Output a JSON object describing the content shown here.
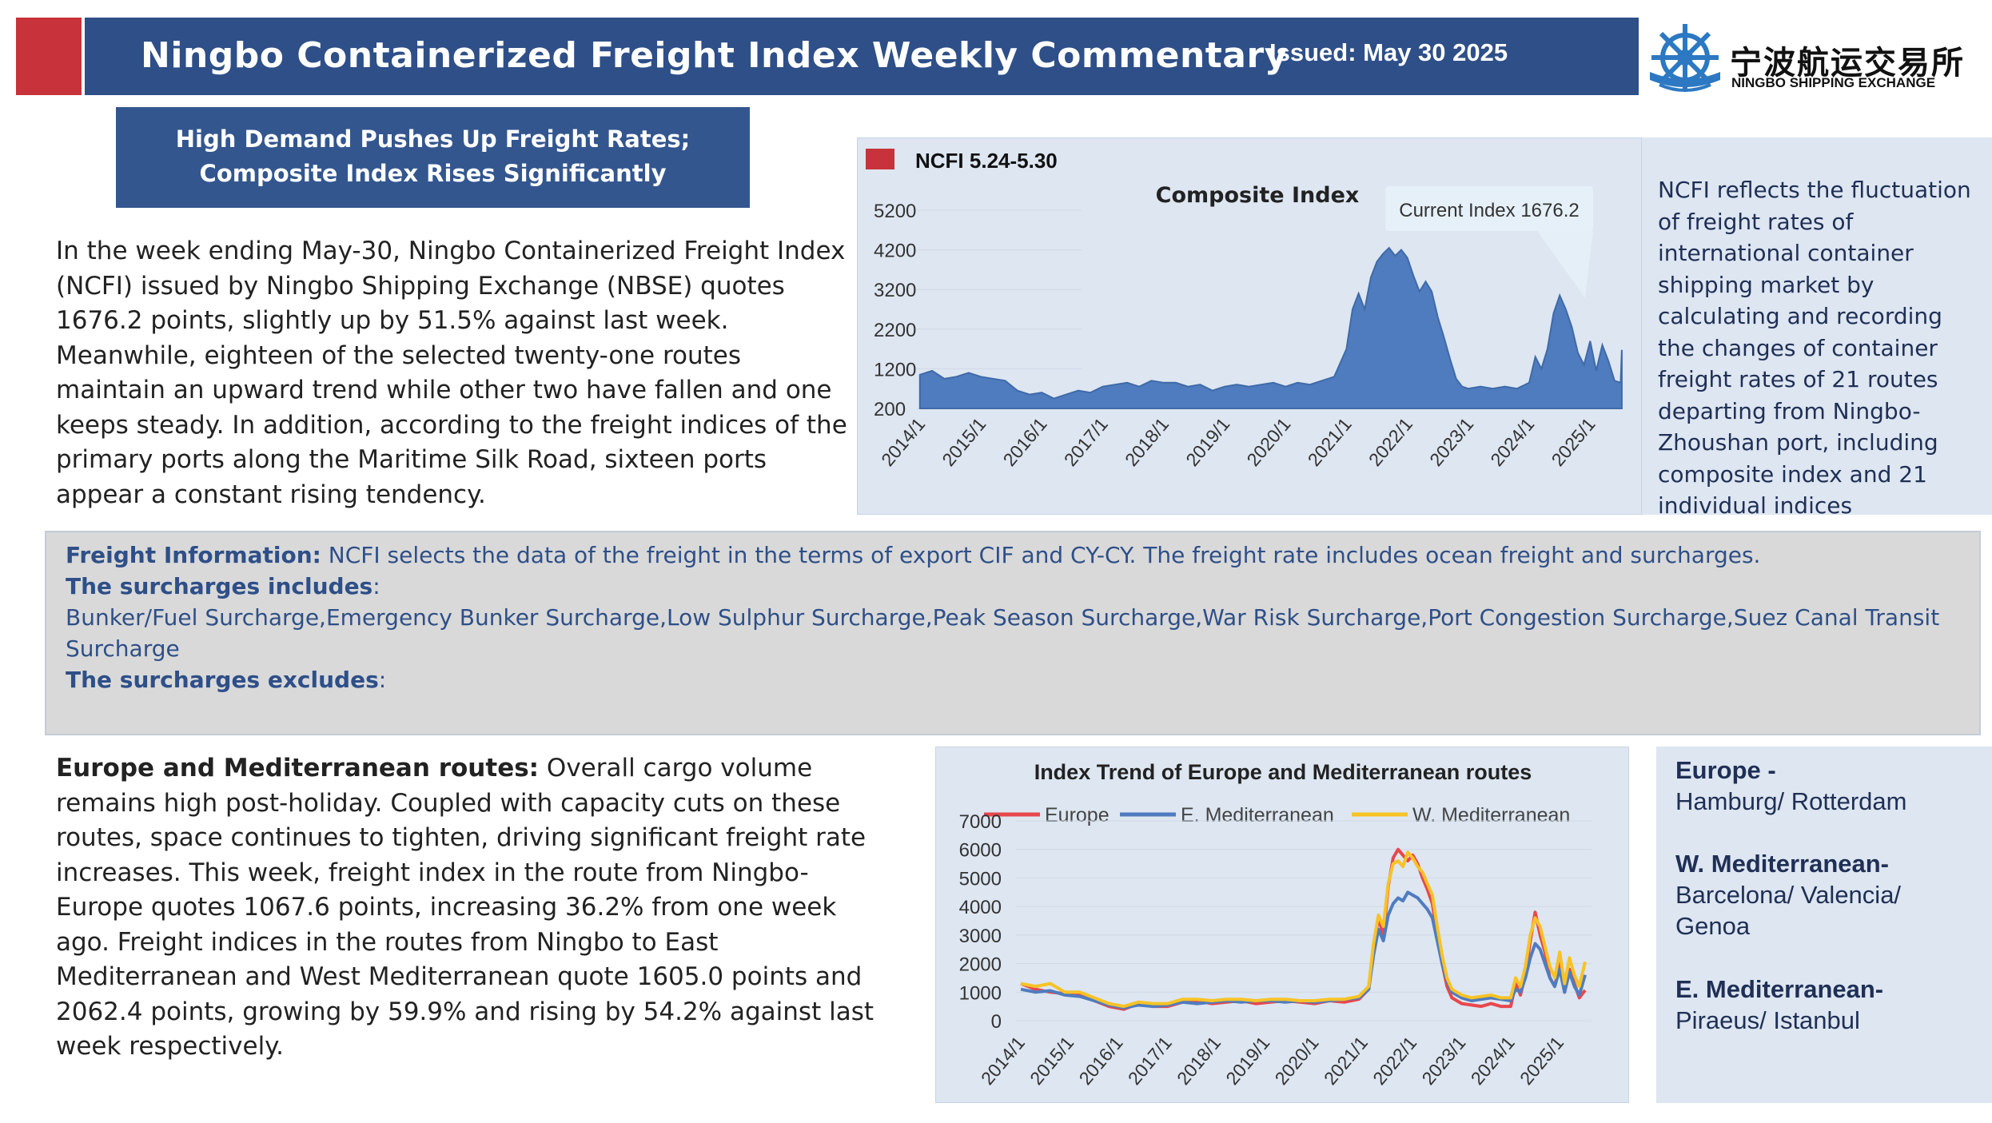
{
  "header": {
    "title": "Ningbo Containerized Freight Index Weekly Commentary",
    "issued": "Issued: May 30 2025",
    "logo_cn": "宁波航运交易所",
    "logo_en": "NINGBO SHIPPING EXCHANGE",
    "accent_color": "#c8323a",
    "bar_color": "#2e4f88"
  },
  "headline": {
    "line1": "High Demand Pushes Up Freight Rates;",
    "line2": "Composite Index Rises Significantly"
  },
  "intro": "In the week ending May-30, Ningbo Containerized Freight Index (NCFI) issued by Ningbo Shipping Exchange (NBSE) quotes 1676.2 points, slightly up by 51.5% against last week. Meanwhile, eighteen of the selected twenty-one routes maintain an upward trend while other two have fallen and one keeps steady. In addition, according to the freight indices of the primary ports along the Maritime Silk Road, sixteen ports appear a constant rising tendency.",
  "composite_note": "NCFI reflects the fluctuation of freight rates of international container shipping market by calculating and recording the changes of container freight rates of 21 routes departing from Ningbo-Zhoushan port, including composite index and 21 individual indices",
  "freight_info": {
    "label": "Freight Information:",
    "text": " NCFI selects the data of the freight in the terms of export CIF and CY-CY. The freight rate includes ocean freight and surcharges.",
    "includes_label": "The surcharges includes",
    "colon": ":",
    "includes_line1": "Bunker/Fuel Surcharge,Emergency Bunker Surcharge,Low Sulphur Surcharge,Peak Season Surcharge,War Risk Surcharge,Port Congestion Surcharge,Suez Canal Transit",
    "includes_line2": "Surcharge",
    "excludes_label": "The surcharges excludes",
    "excludes_colon": ":"
  },
  "europe": {
    "label": "Europe and Mediterranean routes:",
    "text": "  Overall cargo volume remains high post-holiday. Coupled with capacity cuts on these routes, space continues to tighten, driving significant freight rate increases. This week, freight index in the route from Ningbo-Europe quotes 1067.6 points, increasing 36.2% from one week ago. Freight indices in the routes from Ningbo to East Mediterranean and West Mediterranean quote 1605.0 points and 2062.4 points, growing by 59.9% and rising by 54.2% against last week respectively."
  },
  "ports": {
    "europe_head": "Europe -",
    "europe_ports": "Hamburg/ Rotterdam",
    "wmed_head": "W. Mediterranean-",
    "wmed_ports1": "Barcelona/ Valencia/",
    "wmed_ports2": "Genoa",
    "emed_head": "E. Mediterranean-",
    "emed_ports": "Piraeus/ Istanbul"
  },
  "chart_data": [
    {
      "type": "area",
      "title": "Composite Index",
      "legend": "NCFI 5.24-5.30",
      "annotation": "Current Index 1676.2",
      "color": "#4f7cbf",
      "legend_color": "#c8323a",
      "ylim": [
        200,
        5200
      ],
      "yticks": [
        "5200",
        "4200",
        "3200",
        "2200",
        "1200",
        "200"
      ],
      "xticks": [
        "2014/1",
        "2015/1",
        "2016/1",
        "2017/1",
        "2018/1",
        "2019/1",
        "2020/1",
        "2021/1",
        "2022/1",
        "2023/1",
        "2024/1",
        "2025/1"
      ],
      "x": [
        2013.9,
        2014.1,
        2014.3,
        2014.5,
        2014.7,
        2014.9,
        2015.1,
        2015.3,
        2015.5,
        2015.7,
        2015.9,
        2016.1,
        2016.3,
        2016.5,
        2016.7,
        2016.9,
        2017.1,
        2017.3,
        2017.5,
        2017.7,
        2017.9,
        2018.1,
        2018.3,
        2018.5,
        2018.7,
        2018.9,
        2019.1,
        2019.3,
        2019.5,
        2019.7,
        2019.9,
        2020.1,
        2020.3,
        2020.5,
        2020.7,
        2020.9,
        2021.0,
        2021.1,
        2021.2,
        2021.3,
        2021.4,
        2021.5,
        2021.6,
        2021.7,
        2021.8,
        2021.9,
        2022.0,
        2022.1,
        2022.2,
        2022.3,
        2022.4,
        2022.5,
        2022.6,
        2022.7,
        2022.8,
        2022.9,
        2023.1,
        2023.3,
        2023.5,
        2023.7,
        2023.9,
        2024.0,
        2024.1,
        2024.2,
        2024.3,
        2024.4,
        2024.5,
        2024.6,
        2024.7,
        2024.8,
        2024.9,
        2025.0,
        2025.1,
        2025.2,
        2025.3,
        2025.4,
        2025.42
      ],
      "values": [
        1050,
        1150,
        950,
        1000,
        1100,
        1000,
        950,
        900,
        650,
        550,
        600,
        450,
        550,
        650,
        600,
        750,
        800,
        850,
        750,
        900,
        850,
        850,
        750,
        800,
        650,
        750,
        800,
        750,
        800,
        850,
        750,
        850,
        800,
        900,
        1000,
        1700,
        2700,
        3100,
        2700,
        3500,
        3900,
        4100,
        4250,
        4050,
        4200,
        4000,
        3550,
        3150,
        3400,
        3150,
        2500,
        2000,
        1450,
        950,
        750,
        700,
        750,
        700,
        750,
        700,
        850,
        1500,
        1200,
        1700,
        2600,
        3050,
        2700,
        2250,
        1600,
        1300,
        1900,
        1150,
        1800,
        1400,
        900,
        850,
        1676
      ]
    },
    {
      "type": "line",
      "title": "Index Trend of Europe and Mediterranean routes",
      "ylim": [
        0,
        7000
      ],
      "yticks": [
        "7000",
        "6000",
        "5000",
        "4000",
        "3000",
        "2000",
        "1000",
        "0"
      ],
      "xticks": [
        "2014/1",
        "2015/1",
        "2016/1",
        "2017/1",
        "2018/1",
        "2019/1",
        "2020/1",
        "2021/1",
        "2022/1",
        "2023/1",
        "2024/1",
        "2025/1"
      ],
      "x": [
        2013.9,
        2014.2,
        2014.5,
        2014.8,
        2015.1,
        2015.4,
        2015.7,
        2016.0,
        2016.3,
        2016.6,
        2016.9,
        2017.2,
        2017.5,
        2017.8,
        2018.1,
        2018.4,
        2018.7,
        2019.0,
        2019.3,
        2019.6,
        2019.9,
        2020.2,
        2020.5,
        2020.8,
        2021.0,
        2021.1,
        2021.2,
        2021.3,
        2021.4,
        2021.5,
        2021.6,
        2021.7,
        2021.8,
        2021.9,
        2022.0,
        2022.1,
        2022.2,
        2022.3,
        2022.4,
        2022.5,
        2022.6,
        2022.7,
        2022.8,
        2022.9,
        2023.1,
        2023.3,
        2023.5,
        2023.7,
        2023.9,
        2024.0,
        2024.1,
        2024.2,
        2024.3,
        2024.4,
        2024.5,
        2024.6,
        2024.7,
        2024.8,
        2024.9,
        2025.0,
        2025.1,
        2025.2,
        2025.3,
        2025.42
      ],
      "series": [
        {
          "name": "Europe",
          "color": "#e8474c",
          "values": [
            1300,
            1100,
            1000,
            950,
            900,
            700,
            500,
            400,
            600,
            500,
            500,
            650,
            700,
            600,
            650,
            700,
            600,
            650,
            700,
            650,
            600,
            700,
            650,
            750,
            1100,
            2600,
            3600,
            3000,
            4700,
            5700,
            6000,
            5800,
            5600,
            5800,
            5500,
            5000,
            4600,
            4100,
            3000,
            2000,
            1200,
            800,
            700,
            600,
            550,
            500,
            600,
            500,
            500,
            1300,
            900,
            1600,
            2800,
            3800,
            3000,
            2400,
            1500,
            1200,
            2000,
            1000,
            1800,
            1300,
            800,
            1068
          ]
        },
        {
          "name": "E. Mediterranean",
          "color": "#4f7cbf",
          "values": [
            1100,
            1000,
            1050,
            900,
            850,
            700,
            550,
            450,
            550,
            500,
            550,
            650,
            600,
            650,
            700,
            650,
            700,
            700,
            650,
            700,
            650,
            700,
            750,
            800,
            1100,
            2300,
            3200,
            2800,
            3700,
            4100,
            4300,
            4200,
            4500,
            4400,
            4300,
            4100,
            3900,
            3600,
            2800,
            2000,
            1400,
            1000,
            900,
            800,
            700,
            750,
            800,
            750,
            700,
            1100,
            1000,
            1500,
            2200,
            2700,
            2500,
            2000,
            1500,
            1200,
            1800,
            1000,
            1700,
            1200,
            900,
            1605
          ]
        },
        {
          "name": "W. Mediterranean",
          "color": "#f7c325",
          "values": [
            1300,
            1200,
            1300,
            1000,
            1000,
            800,
            600,
            500,
            650,
            600,
            600,
            750,
            750,
            700,
            750,
            750,
            700,
            750,
            750,
            700,
            700,
            750,
            750,
            850,
            1200,
            2700,
            3700,
            3300,
            4800,
            5500,
            5600,
            5400,
            5900,
            5700,
            5400,
            5200,
            4800,
            4400,
            3300,
            2300,
            1500,
            1100,
            1000,
            900,
            800,
            850,
            900,
            800,
            800,
            1500,
            1200,
            1900,
            3000,
            3600,
            3300,
            2600,
            1900,
            1500,
            2400,
            1300,
            2200,
            1600,
            1200,
            2062
          ]
        }
      ]
    }
  ]
}
